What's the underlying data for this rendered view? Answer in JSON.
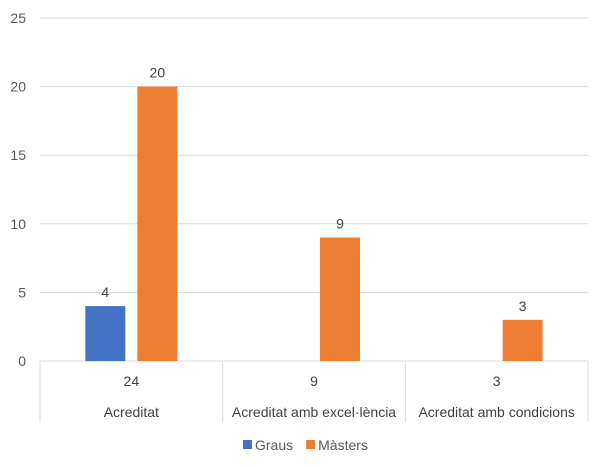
{
  "chart_data": {
    "type": "bar",
    "title": "",
    "xlabel": "",
    "ylabel": "",
    "categories": [
      "Acreditat",
      "Acreditat amb excel·lència",
      "Acreditat amb condicions"
    ],
    "series": [
      {
        "name": "Graus",
        "color": "#4472C4",
        "values": [
          4,
          null,
          null
        ]
      },
      {
        "name": "Màsters",
        "color": "#ED7D31",
        "values": [
          20,
          9,
          3
        ]
      }
    ],
    "data_table_row": [
      "24",
      "9",
      "3"
    ],
    "ylim": [
      0,
      25
    ],
    "yticks": [
      0,
      5,
      10,
      15,
      20,
      25
    ],
    "grid": true,
    "legend": "bottom"
  }
}
